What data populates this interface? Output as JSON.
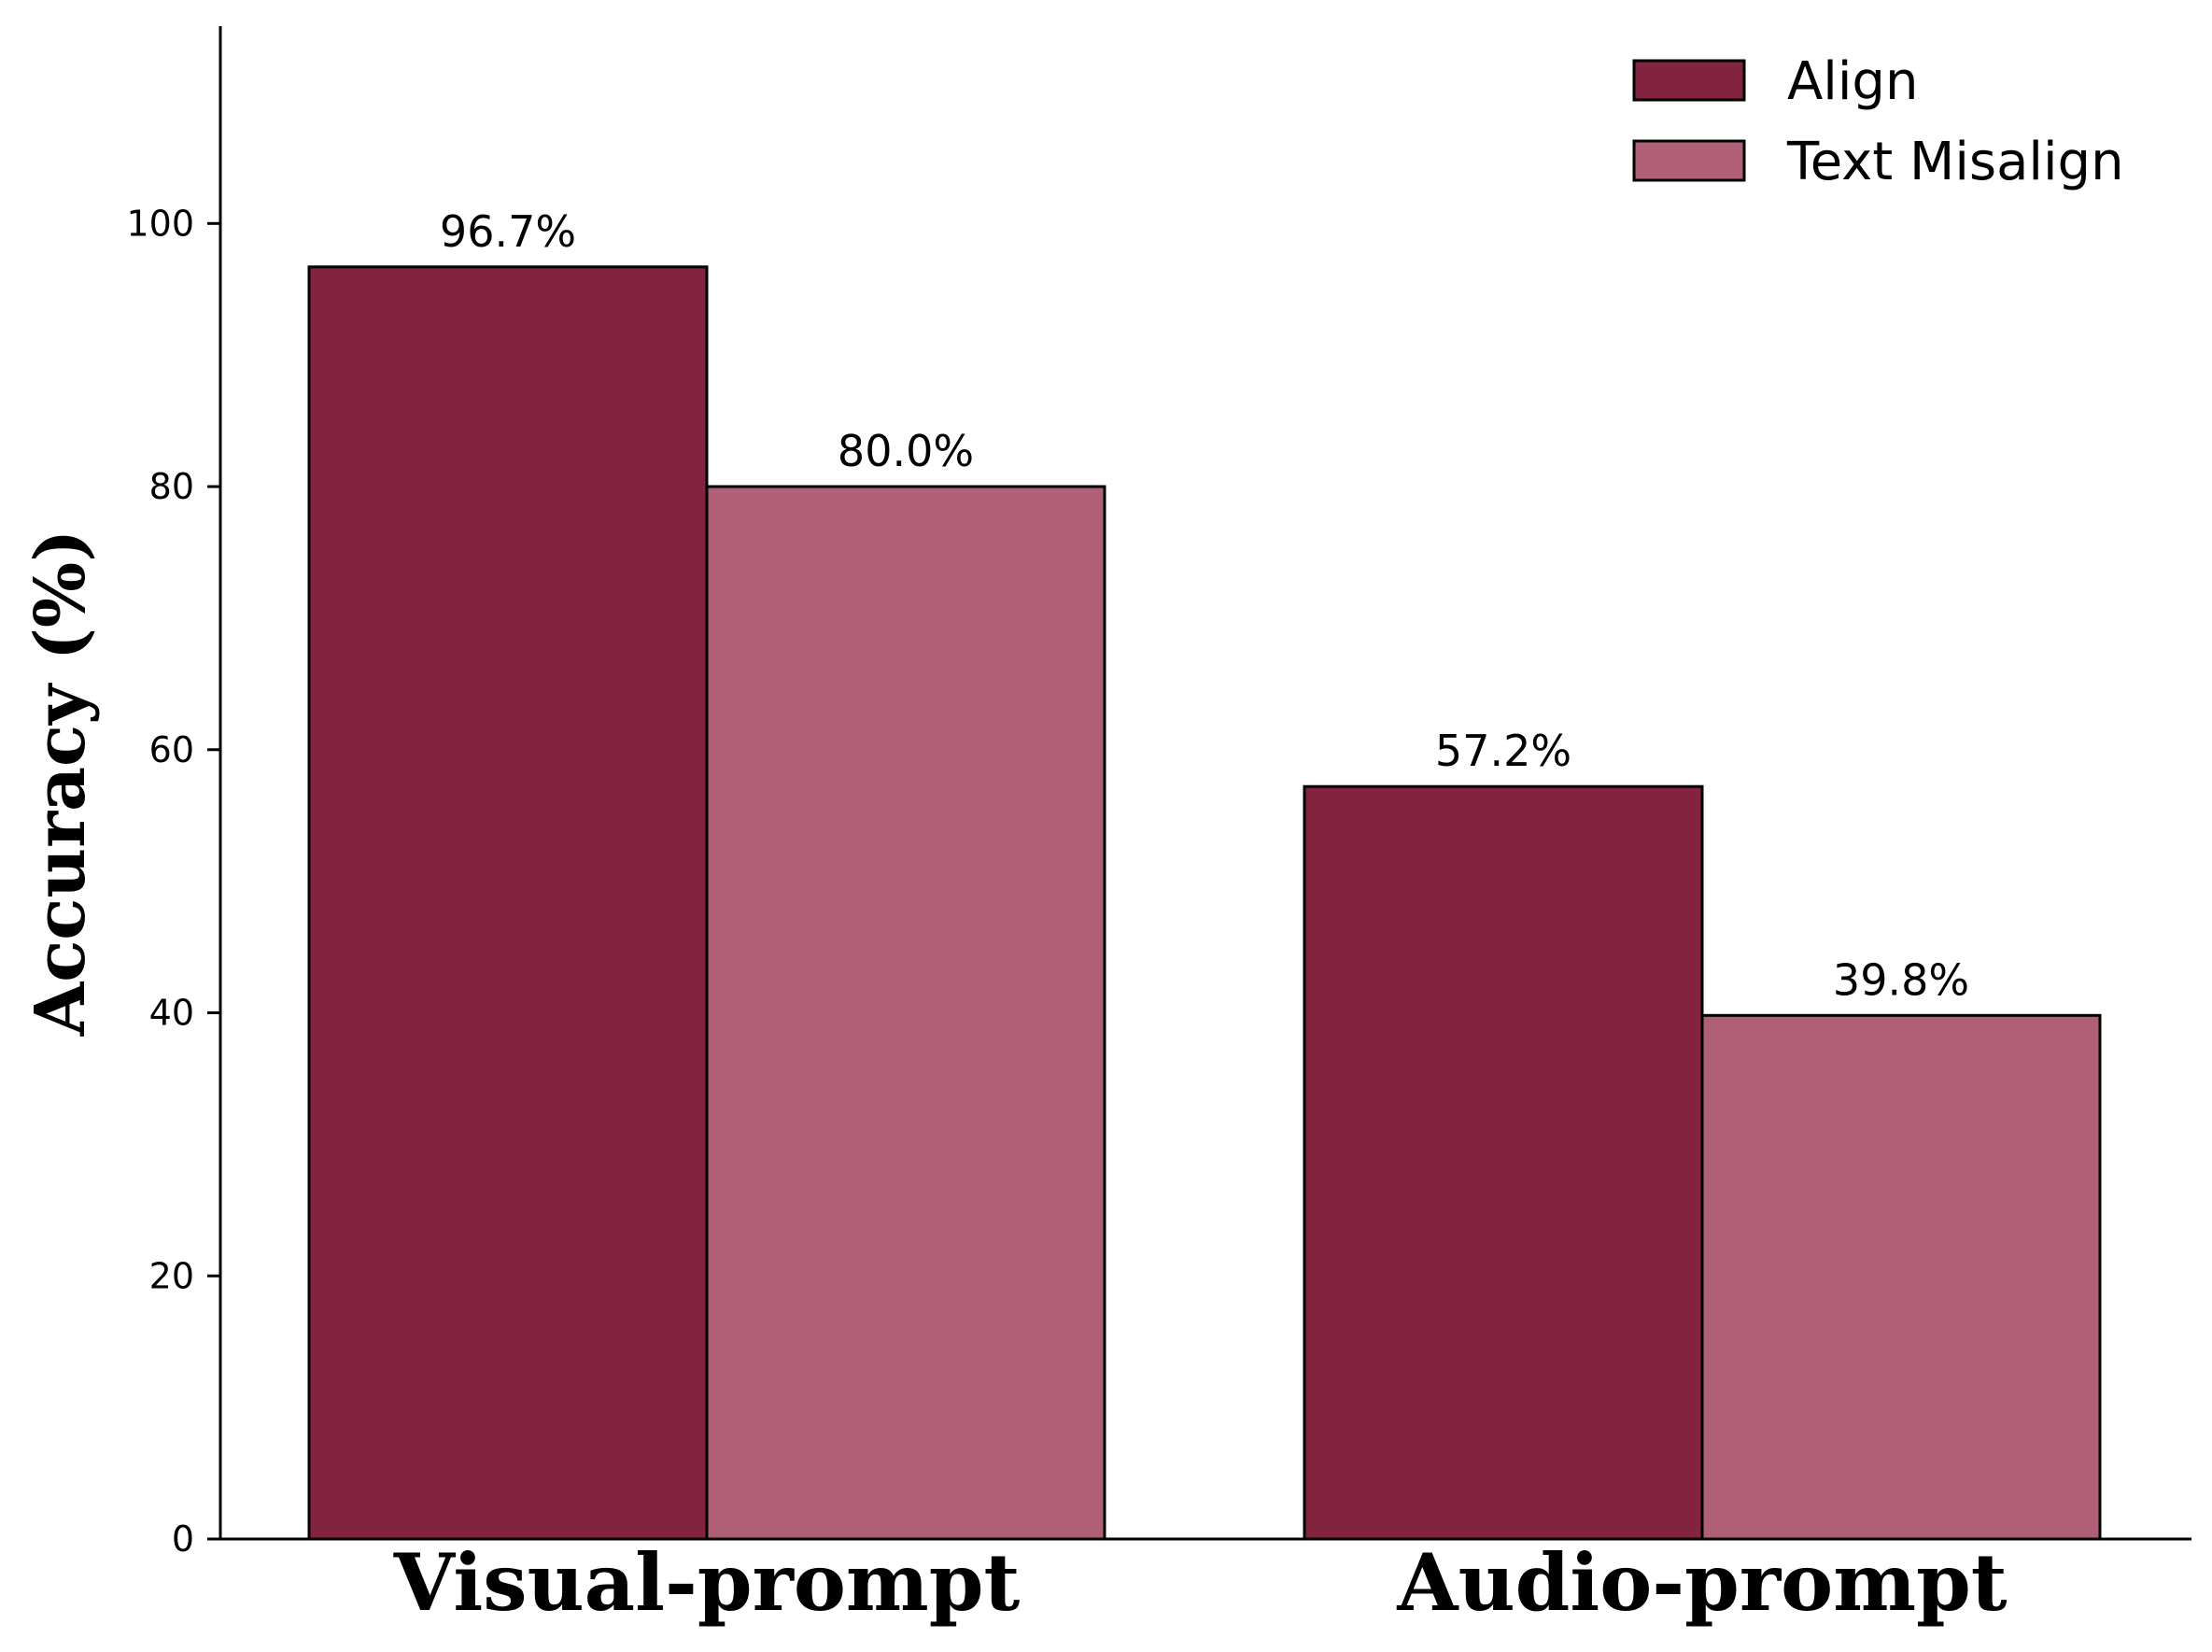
{
  "chart_data": {
    "type": "bar",
    "categories": [
      "Visual-prompt",
      "Audio-prompt"
    ],
    "series": [
      {
        "name": "Align",
        "values": [
          96.7,
          57.2
        ],
        "labels": [
          "96.7%",
          "57.2%"
        ],
        "color": "#82233f"
      },
      {
        "name": "Text Misalign",
        "values": [
          80.0,
          39.8
        ],
        "labels": [
          "80.0%",
          "39.8%"
        ],
        "color": "#b06076"
      }
    ],
    "ylabel": "Accuracy (%)",
    "xlabel": "",
    "ylim": [
      0,
      115
    ],
    "yticks": [
      0,
      20,
      40,
      60,
      80,
      100
    ],
    "grid": false,
    "legend_position": "top-right"
  }
}
